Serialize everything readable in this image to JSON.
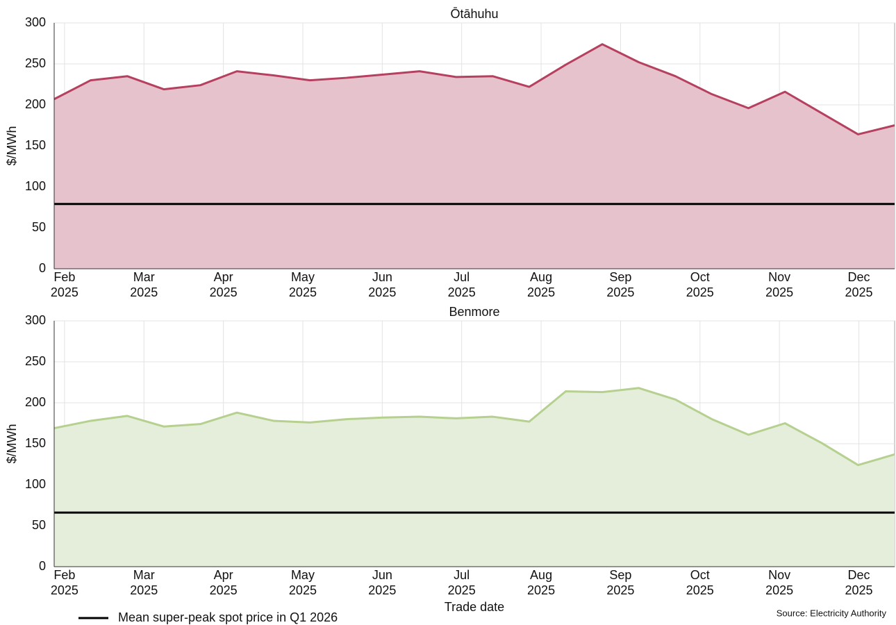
{
  "chart_data": [
    {
      "type": "area",
      "title": "Ōtāhuhu",
      "ylabel": "$/MWh",
      "x": [
        1.87,
        2.33,
        2.79,
        3.25,
        3.71,
        4.17,
        4.63,
        5.09,
        5.55,
        6.01,
        6.47,
        6.93,
        7.39,
        7.85,
        8.31,
        8.77,
        9.23,
        9.69,
        10.15,
        10.61,
        11.07,
        11.53,
        11.99,
        12.45
      ],
      "series": [
        {
          "color": "#b5405f",
          "fill": "#e6c2cc",
          "values": [
            207,
            230,
            235,
            219,
            224,
            241,
            236,
            230,
            233,
            237,
            241,
            234,
            235,
            222,
            249,
            274,
            252,
            235,
            213,
            196,
            216,
            190,
            164,
            175
          ]
        }
      ],
      "hline": 79,
      "hline_color": "#000000",
      "xlim": [
        1.87,
        12.45
      ],
      "xticks": [
        {
          "value": 2,
          "label": "Feb\n2025"
        },
        {
          "value": 3,
          "label": "Mar\n2025"
        },
        {
          "value": 4,
          "label": "Apr\n2025"
        },
        {
          "value": 5,
          "label": "May\n2025"
        },
        {
          "value": 6,
          "label": "Jun\n2025"
        },
        {
          "value": 7,
          "label": "Jul\n2025"
        },
        {
          "value": 8,
          "label": "Aug\n2025"
        },
        {
          "value": 9,
          "label": "Sep\n2025"
        },
        {
          "value": 10,
          "label": "Oct\n2025"
        },
        {
          "value": 11,
          "label": "Nov\n2025"
        },
        {
          "value": 12,
          "label": "Dec\n2025"
        }
      ],
      "ylim": [
        0,
        300
      ],
      "yticks": [
        0,
        50,
        100,
        150,
        200,
        250,
        300
      ],
      "grid": true
    },
    {
      "type": "area",
      "title": "Benmore",
      "ylabel": "$/MWh",
      "x": [
        1.87,
        2.33,
        2.79,
        3.25,
        3.71,
        4.17,
        4.63,
        5.09,
        5.55,
        6.01,
        6.47,
        6.93,
        7.39,
        7.85,
        8.31,
        8.77,
        9.23,
        9.69,
        10.15,
        10.61,
        11.07,
        11.53,
        11.99,
        12.45
      ],
      "series": [
        {
          "color": "#b5d08f",
          "fill": "#e5eedb",
          "values": [
            169,
            178,
            184,
            171,
            174,
            188,
            178,
            176,
            180,
            182,
            183,
            181,
            183,
            177,
            214,
            213,
            218,
            204,
            180,
            161,
            175,
            151,
            124,
            137
          ]
        }
      ],
      "hline": 66,
      "hline_color": "#000000",
      "xlim": [
        1.87,
        12.45
      ],
      "xticks": [
        {
          "value": 2,
          "label": "Feb\n2025"
        },
        {
          "value": 3,
          "label": "Mar\n2025"
        },
        {
          "value": 4,
          "label": "Apr\n2025"
        },
        {
          "value": 5,
          "label": "May\n2025"
        },
        {
          "value": 6,
          "label": "Jun\n2025"
        },
        {
          "value": 7,
          "label": "Jul\n2025"
        },
        {
          "value": 8,
          "label": "Aug\n2025"
        },
        {
          "value": 9,
          "label": "Sep\n2025"
        },
        {
          "value": 10,
          "label": "Oct\n2025"
        },
        {
          "value": 11,
          "label": "Nov\n2025"
        },
        {
          "value": 12,
          "label": "Dec\n2025"
        }
      ],
      "ylim": [
        0,
        300
      ],
      "yticks": [
        0,
        50,
        100,
        150,
        200,
        250,
        300
      ],
      "grid": true
    }
  ],
  "xlabel": "Trade date",
  "legend_label": "Mean super-peak spot price in Q1 2026",
  "source": "Source: Electricity Authority"
}
